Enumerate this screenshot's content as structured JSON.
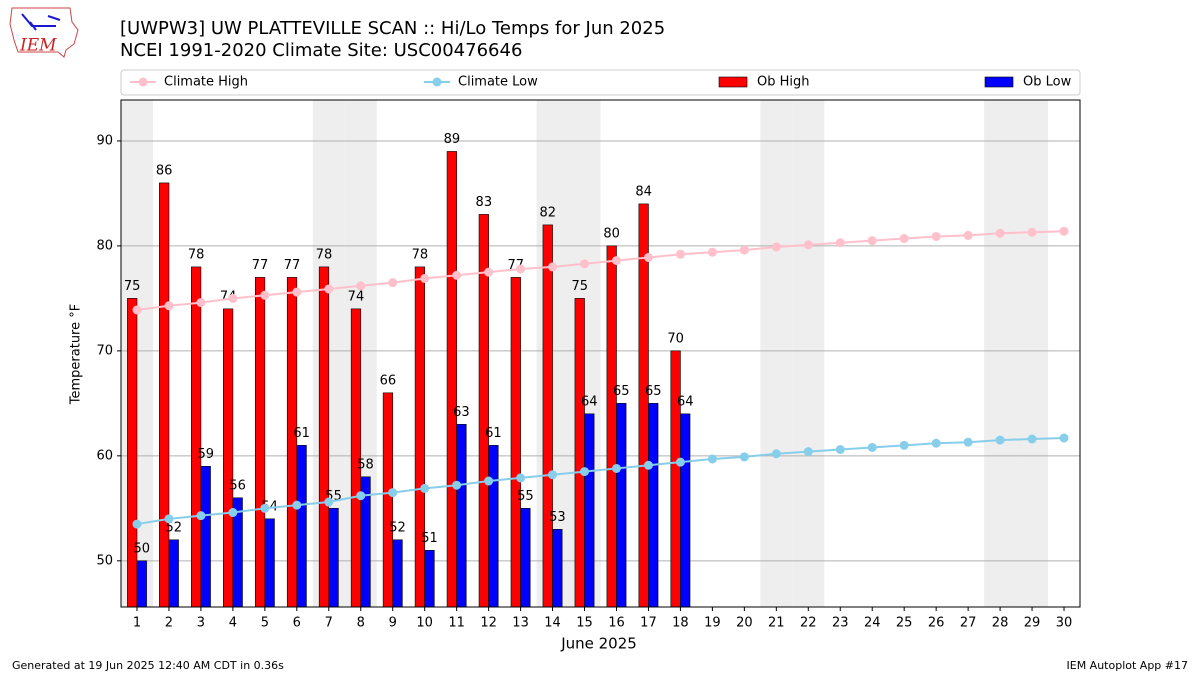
{
  "chart_data": {
    "type": "bar",
    "title": "[UWPW3] UW PLATTEVILLE SCAN :: Hi/Lo Temps for Jun 2025",
    "subtitle": "NCEI 1991-2020 Climate Site: USC00476646",
    "xlabel": "June 2025",
    "ylabel": "Temperature °F",
    "x": [
      1,
      2,
      3,
      4,
      5,
      6,
      7,
      8,
      9,
      10,
      11,
      12,
      13,
      14,
      15,
      16,
      17,
      18,
      19,
      20,
      21,
      22,
      23,
      24,
      25,
      26,
      27,
      28,
      29,
      30
    ],
    "xlim": [
      0.5,
      30.5
    ],
    "xticks": [
      1,
      2,
      3,
      4,
      5,
      6,
      7,
      8,
      9,
      10,
      11,
      12,
      13,
      14,
      15,
      16,
      17,
      18,
      19,
      20,
      21,
      22,
      23,
      24,
      25,
      26,
      27,
      28,
      29,
      30
    ],
    "ylim": [
      45.6,
      93.9
    ],
    "yticks": [
      50,
      60,
      70,
      80,
      90
    ],
    "grid": true,
    "shaded_days": [
      1,
      7,
      8,
      14,
      15,
      21,
      22,
      28,
      29
    ],
    "series": [
      {
        "name": "Climate High",
        "type": "line",
        "color": "#ffc0cb",
        "values": [
          73.9,
          74.3,
          74.6,
          75.0,
          75.3,
          75.6,
          75.9,
          76.2,
          76.5,
          76.9,
          77.2,
          77.5,
          77.8,
          78.0,
          78.3,
          78.6,
          78.9,
          79.2,
          79.4,
          79.6,
          79.9,
          80.1,
          80.3,
          80.5,
          80.7,
          80.9,
          81.0,
          81.2,
          81.3,
          81.4
        ]
      },
      {
        "name": "Climate Low",
        "type": "line",
        "color": "#87ceeb",
        "values": [
          53.5,
          54.0,
          54.3,
          54.6,
          55.0,
          55.3,
          55.6,
          56.2,
          56.5,
          56.9,
          57.2,
          57.6,
          57.9,
          58.2,
          58.5,
          58.8,
          59.1,
          59.4,
          59.7,
          59.9,
          60.2,
          60.4,
          60.6,
          60.8,
          61.0,
          61.2,
          61.3,
          61.5,
          61.6,
          61.7
        ]
      },
      {
        "name": "Ob High",
        "type": "bar",
        "color": "#ff0000",
        "values": [
          75,
          86,
          78,
          74,
          77,
          77,
          78,
          74,
          66,
          78,
          89,
          83,
          77,
          82,
          75,
          80,
          84,
          70,
          null,
          null,
          null,
          null,
          null,
          null,
          null,
          null,
          null,
          null,
          null,
          null
        ]
      },
      {
        "name": "Ob Low",
        "type": "bar",
        "color": "#0000ff",
        "values": [
          50,
          52,
          59,
          56,
          54,
          61,
          55,
          58,
          52,
          51,
          63,
          61,
          55,
          53,
          64,
          65,
          65,
          64,
          null,
          null,
          null,
          null,
          null,
          null,
          null,
          null,
          null,
          null,
          null,
          null
        ]
      }
    ]
  },
  "logo": "IEM",
  "footer": {
    "left": "Generated at 19 Jun 2025 12:40 AM CDT in 0.36s",
    "right": "IEM Autoplot App #17"
  }
}
